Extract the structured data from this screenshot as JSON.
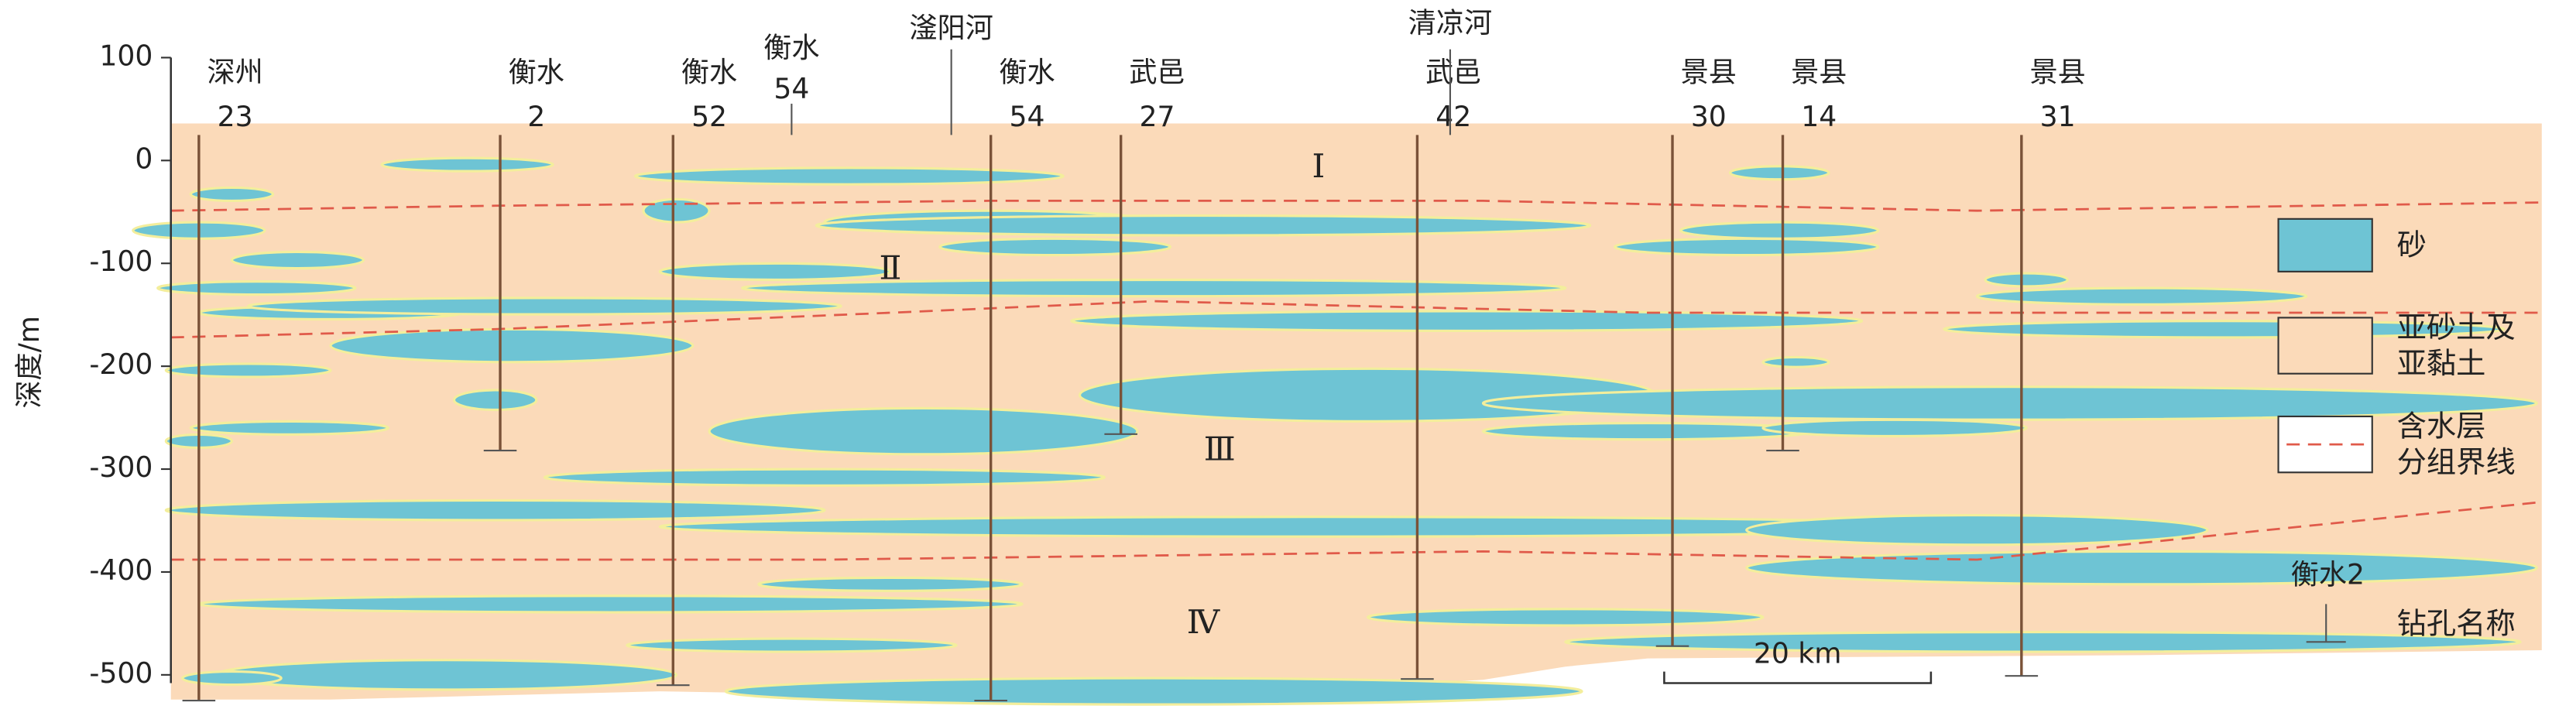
{
  "depth_axis": {
    "label": "深度/m",
    "lim": [
      -500,
      100
    ],
    "ticks": [
      100,
      0,
      -100,
      -200,
      -300,
      -400,
      -500
    ]
  },
  "boreholes": [
    {
      "name": "深州",
      "number": "23",
      "depth": -525
    },
    {
      "name": "衡水",
      "number": "2",
      "depth": -282
    },
    {
      "name": "衡水",
      "number": "52",
      "depth": -510
    },
    {
      "name": "衡水",
      "number": "54",
      "depth": -525
    },
    {
      "name": "武邑",
      "number": "27",
      "depth": -266
    },
    {
      "name": "武邑",
      "number": "42",
      "depth": -504
    },
    {
      "name": "景县",
      "number": "30",
      "depth": -472
    },
    {
      "name": "景县",
      "number": "14",
      "depth": -282
    },
    {
      "name": "景县",
      "number": "31",
      "depth": -501
    }
  ],
  "markers": [
    {
      "name": "衡水",
      "number": "54"
    },
    {
      "name": "滏阳河"
    },
    {
      "name": "清凉河"
    }
  ],
  "aquifer_groups": [
    "Ⅰ",
    "Ⅱ",
    "Ⅲ",
    "Ⅳ"
  ],
  "legend": [
    {
      "label": [
        "砂"
      ]
    },
    {
      "label": [
        "亚砂土及",
        "亚黏土"
      ]
    },
    {
      "label": [
        "含水层",
        "分组界线"
      ]
    },
    {
      "symbol": "衡水2",
      "label": [
        "钻孔名称"
      ]
    }
  ],
  "scale_bar": "20 km"
}
